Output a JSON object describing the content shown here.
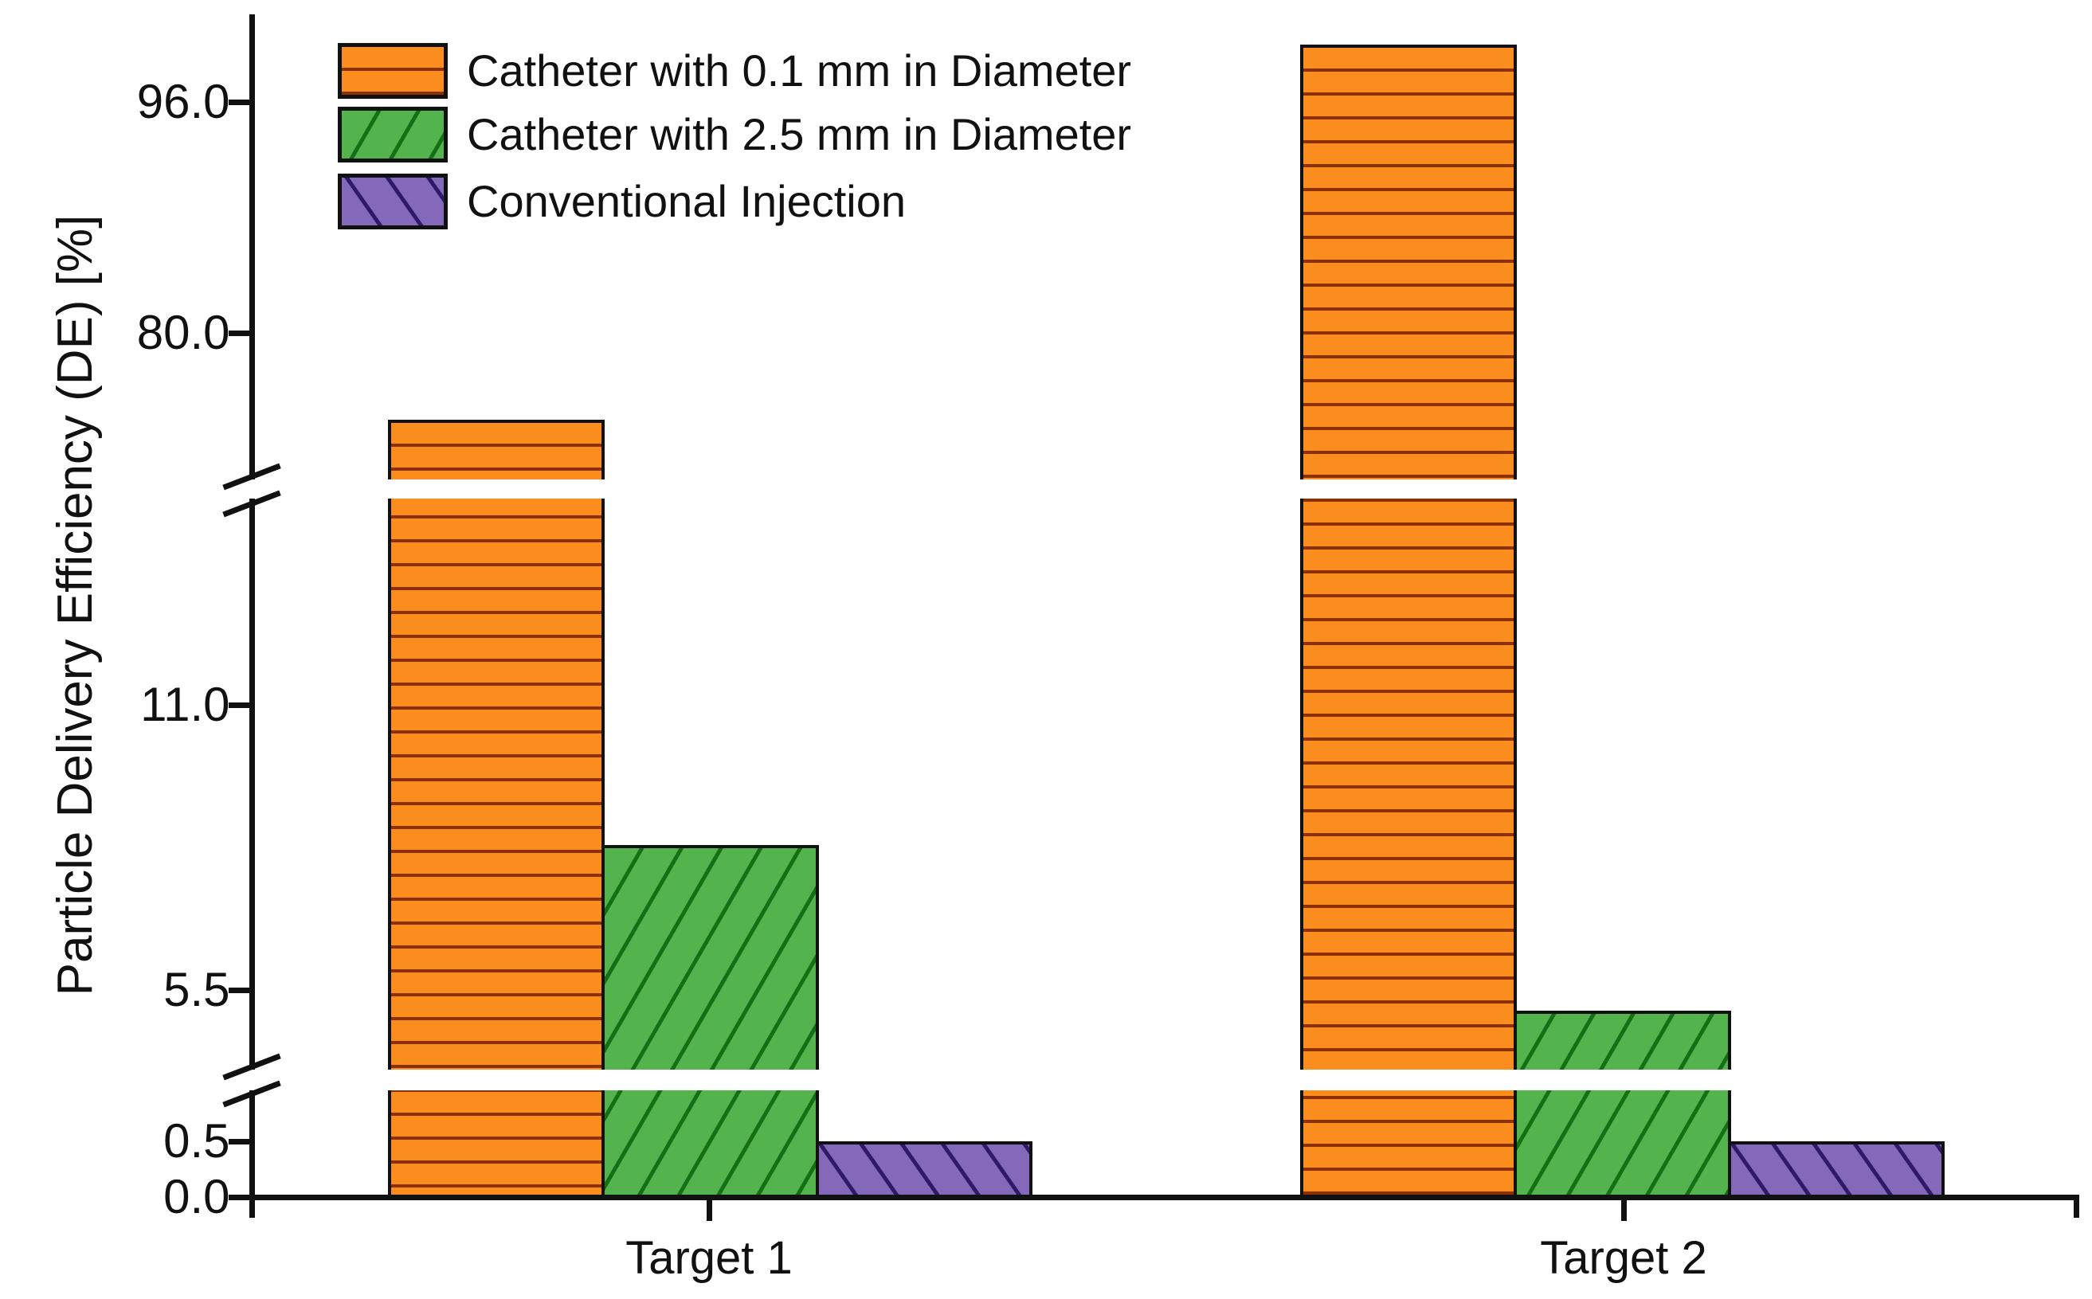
{
  "chart_data": {
    "type": "bar",
    "title": "",
    "xlabel": "",
    "ylabel": "Particle Delivery Efficiency (DE) [%]",
    "categories": [
      "Target 1",
      "Target 2"
    ],
    "series": [
      {
        "name": "Catheter with 0.1 mm in Diameter",
        "values": [
          74.0,
          100.0
        ],
        "fill_color": "#FB8C1E",
        "hatch": "horizontal",
        "hatch_color": "#8B3000"
      },
      {
        "name": "Catheter with 2.5 mm in Diameter",
        "values": [
          8.3,
          5.1
        ],
        "fill_color": "#53B44E",
        "hatch": "forward-diagonal",
        "hatch_color": "#156F15"
      },
      {
        "name": "Conventional Injection",
        "values": [
          0.5,
          0.5
        ],
        "fill_color": "#8469BB",
        "hatch": "backward-diagonal",
        "hatch_color": "#2E1A66"
      }
    ],
    "y_ticks": [
      0.0,
      0.5,
      5.5,
      11.0,
      80.0,
      96.0
    ],
    "y_tick_labels": [
      "0.0",
      "0.5",
      "5.5",
      "11.0",
      "80.0",
      "96.0"
    ],
    "axis_breaks": [
      {
        "between_values": [
          1.0,
          4.0
        ]
      },
      {
        "between_values": [
          15.0,
          70.0
        ]
      }
    ],
    "ylim": [
      0,
      102
    ],
    "grid": false,
    "legend_position": "top-left",
    "edge_color": "#111111"
  }
}
